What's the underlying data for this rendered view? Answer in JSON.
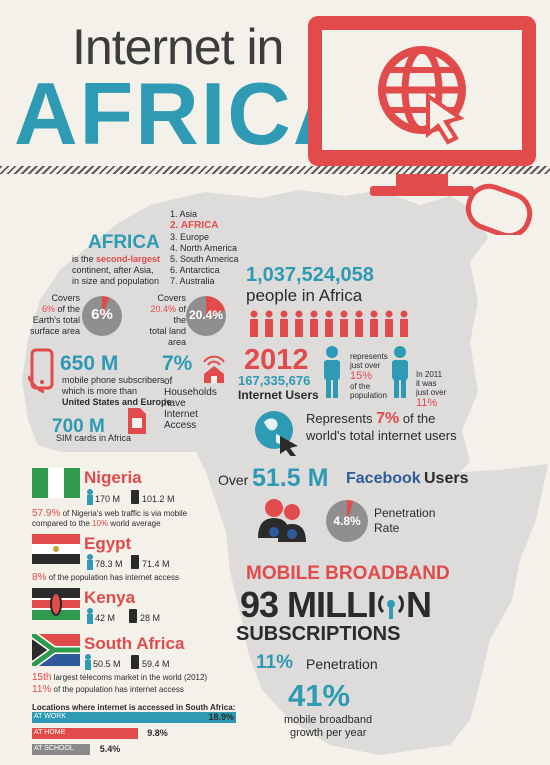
{
  "title": {
    "line1": "Internet in",
    "line2": "AFRICA"
  },
  "continent": {
    "heading": "AFRICA",
    "desc_prefix": "is the ",
    "desc_highlight": "second-largest",
    "desc_rest1": "continent, after Asia,",
    "desc_rest2": "in size and population",
    "ranking": [
      "1. Asia",
      "2. AFRICA",
      "3. Europe",
      "4. North America",
      "5. South America",
      "6. Antarctica",
      "7. Australia"
    ]
  },
  "earth_surface": {
    "line1": "Covers",
    "line2_pct": "6%",
    "line2_rest": " of the",
    "line3": "Earth's total",
    "line4": "surface area",
    "pie_label": "6%",
    "value": 0.06
  },
  "land_area": {
    "line1": "Covers",
    "line2_pct": "20.4%",
    "line2_rest": " of the",
    "line3": "total land",
    "line4": "area",
    "pie_label": "20.4%",
    "value": 0.204
  },
  "population": {
    "number": "1,037,524,058",
    "label": "people in Africa",
    "people_count": 11
  },
  "mobile": {
    "number": "650 M",
    "line1": "mobile phone subscribers",
    "line2": "which is more than",
    "line3": "United States and Europe"
  },
  "sim": {
    "number": "700 M",
    "label": "SIM cards in Africa"
  },
  "households": {
    "pct": "7%",
    "line1": "of",
    "line2": "Households",
    "line3": "have",
    "line4": "Internet",
    "line5": "Access"
  },
  "users2012": {
    "year": "2012",
    "number": "167,335,676",
    "label": "Internet Users",
    "rep1": "represents",
    "rep2": "just over",
    "rep_pct": "15%",
    "rep3": "of the",
    "rep4": "population",
    "in2011_1": "In 2011",
    "in2011_2": "it was",
    "in2011_3": "just over",
    "in2011_pct": "11%"
  },
  "world_share": {
    "line1_a": "Represents ",
    "line1_pct": "7%",
    "line1_b": " of the",
    "line2": "world's total internet users"
  },
  "facebook": {
    "over": "Over",
    "number": "51.5 M",
    "brand": "Facebook",
    "users": "Users",
    "pen_label": "4.8%",
    "pen_text1": "Penetration",
    "pen_text2": "Rate",
    "value": 0.048
  },
  "broadband": {
    "heading": "MOBILE BROADBAND",
    "number": "93 MILLI",
    "number_end": "N",
    "subs": "SUBSCRIPTIONS",
    "pen_pct": "11%",
    "pen_label": "Penetration",
    "growth_pct": "41%",
    "growth1": "mobile broadband",
    "growth2": "growth per year"
  },
  "countries": [
    {
      "name": "Nigeria",
      "pop1": "170 M",
      "pop2": "101.2 M",
      "note_pct": "57.9%",
      "note_rest": " of Nigeria's web traffic is via mobile",
      "note2_a": "compared to the ",
      "note2_pct": "10%",
      "note2_b": " world average"
    },
    {
      "name": "Egypt",
      "pop1": "78.3 M",
      "pop2": "71.4 M",
      "note_pct": "8%",
      "note_rest": " of the population has internet access"
    },
    {
      "name": "Kenya",
      "pop1": "42 M",
      "pop2": "28 M"
    },
    {
      "name": "South Africa",
      "pop1": "50.5 M",
      "pop2": "59.4 M",
      "note1_a": "15th",
      "note1_b": " largest telecoms market in the world (2012)",
      "note2_pct": "11%",
      "note2_b": " of the population has internet access"
    }
  ],
  "locations": {
    "title": "Locations where internet is accessed in South Africa:",
    "items": [
      {
        "label": "AT WORK",
        "value": 18.9,
        "text": "18.9%",
        "color": "#2e9ab3"
      },
      {
        "label": "AT HOME",
        "value": 9.8,
        "text": "9.8%",
        "color": "#e14b4b"
      },
      {
        "label": "AT SCHOOL",
        "value": 5.4,
        "text": "5.4%",
        "color": "#8a8a8a"
      }
    ]
  },
  "colors": {
    "blue": "#2e9ab3",
    "red": "#e14b4b",
    "dark": "#2b2b2b",
    "map": "#dddcda"
  }
}
